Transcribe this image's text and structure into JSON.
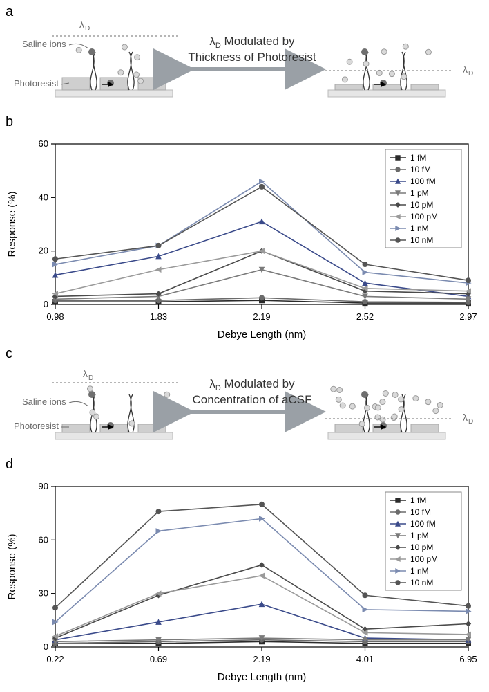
{
  "panels": {
    "a": "a",
    "b": "b",
    "c": "c",
    "d": "d"
  },
  "schematic": {
    "a": {
      "caption_line1": "λ_D Modulated by",
      "caption_line2": "Thickness of Photoresist",
      "lambda_label": "λ_D",
      "saline_label": "Saline ions",
      "photoresist_label": "Photoresist"
    },
    "c": {
      "caption_line1": "λ_D Modulated by",
      "caption_line2": "Concentration of aCSF",
      "lambda_label": "λ_D",
      "saline_label": "Saline ions",
      "photoresist_label": "Photoresist"
    },
    "colors": {
      "ion_fill": "#d9d9d9",
      "ion_stroke": "#999",
      "photoresist": "#cfcfcf",
      "substrate": "#e6e6e6",
      "arrow": "#9aa0a6",
      "lambda_line": "#8a8a8a",
      "text": "#6b6b6b",
      "target_ion": "#707070"
    }
  },
  "legend": {
    "labels": [
      "1 fM",
      "10 fM",
      "100 fM",
      "1 pM",
      "10 pM",
      "100 pM",
      "1 nM",
      "10 nM"
    ],
    "colors": [
      "#2b2b2b",
      "#6b6b6b",
      "#3a4a8a",
      "#7a7a7a",
      "#4a4a4a",
      "#9a9a9a",
      "#7b8bb0",
      "#555555"
    ],
    "markers": [
      "square",
      "circle",
      "triangle-up",
      "triangle-down",
      "diamond",
      "triangle-left",
      "triangle-right",
      "circle"
    ]
  },
  "chart_b": {
    "type": "line",
    "xlabel": "Debye Length (nm)",
    "ylabel": "Response (%)",
    "xticks": [
      0.98,
      1.83,
      2.19,
      2.52,
      2.97
    ],
    "yticks": [
      0,
      20,
      40,
      60
    ],
    "ylim": [
      0,
      60
    ],
    "plot_bg": "#ffffff",
    "axis_color": "#000000",
    "tick_fontsize": 13,
    "label_fontsize": 15,
    "line_width": 1.6,
    "series": [
      {
        "name": "1 fM",
        "y": [
          1,
          1,
          1.5,
          0.5,
          0.5
        ]
      },
      {
        "name": "10 fM",
        "y": [
          1.5,
          1.5,
          2.5,
          1,
          0.8
        ]
      },
      {
        "name": "100 fM",
        "y": [
          11,
          18,
          31,
          8,
          3
        ]
      },
      {
        "name": "1 pM",
        "y": [
          2,
          3,
          13,
          3,
          2
        ]
      },
      {
        "name": "10 pM",
        "y": [
          3,
          4,
          20,
          5,
          4
        ]
      },
      {
        "name": "100 pM",
        "y": [
          4,
          13,
          20,
          6,
          5
        ]
      },
      {
        "name": "1 nM",
        "y": [
          15,
          22,
          46,
          12,
          8
        ]
      },
      {
        "name": "10 nM",
        "y": [
          17,
          22,
          44,
          15,
          9
        ]
      }
    ]
  },
  "chart_d": {
    "type": "line",
    "xlabel": "Debye Length (nm)",
    "ylabel": "Response (%)",
    "xticks": [
      0.22,
      0.69,
      2.19,
      4.01,
      6.95
    ],
    "yticks": [
      0,
      30,
      60,
      90
    ],
    "ylim": [
      0,
      90
    ],
    "plot_bg": "#ffffff",
    "axis_color": "#000000",
    "tick_fontsize": 13,
    "label_fontsize": 15,
    "line_width": 1.6,
    "series": [
      {
        "name": "1 fM",
        "y": [
          2,
          2,
          3,
          2,
          2
        ]
      },
      {
        "name": "10 fM",
        "y": [
          2,
          3,
          4,
          3,
          3
        ]
      },
      {
        "name": "100 fM",
        "y": [
          4,
          14,
          24,
          5,
          4
        ]
      },
      {
        "name": "1 pM",
        "y": [
          3,
          4,
          5,
          4,
          4
        ]
      },
      {
        "name": "10 pM",
        "y": [
          5,
          29,
          46,
          10,
          13
        ]
      },
      {
        "name": "100 pM",
        "y": [
          6,
          30,
          40,
          8,
          7
        ]
      },
      {
        "name": "1 nM",
        "y": [
          14,
          65,
          72,
          21,
          20
        ]
      },
      {
        "name": "10 nM",
        "y": [
          22,
          76,
          80,
          29,
          23
        ]
      }
    ]
  }
}
